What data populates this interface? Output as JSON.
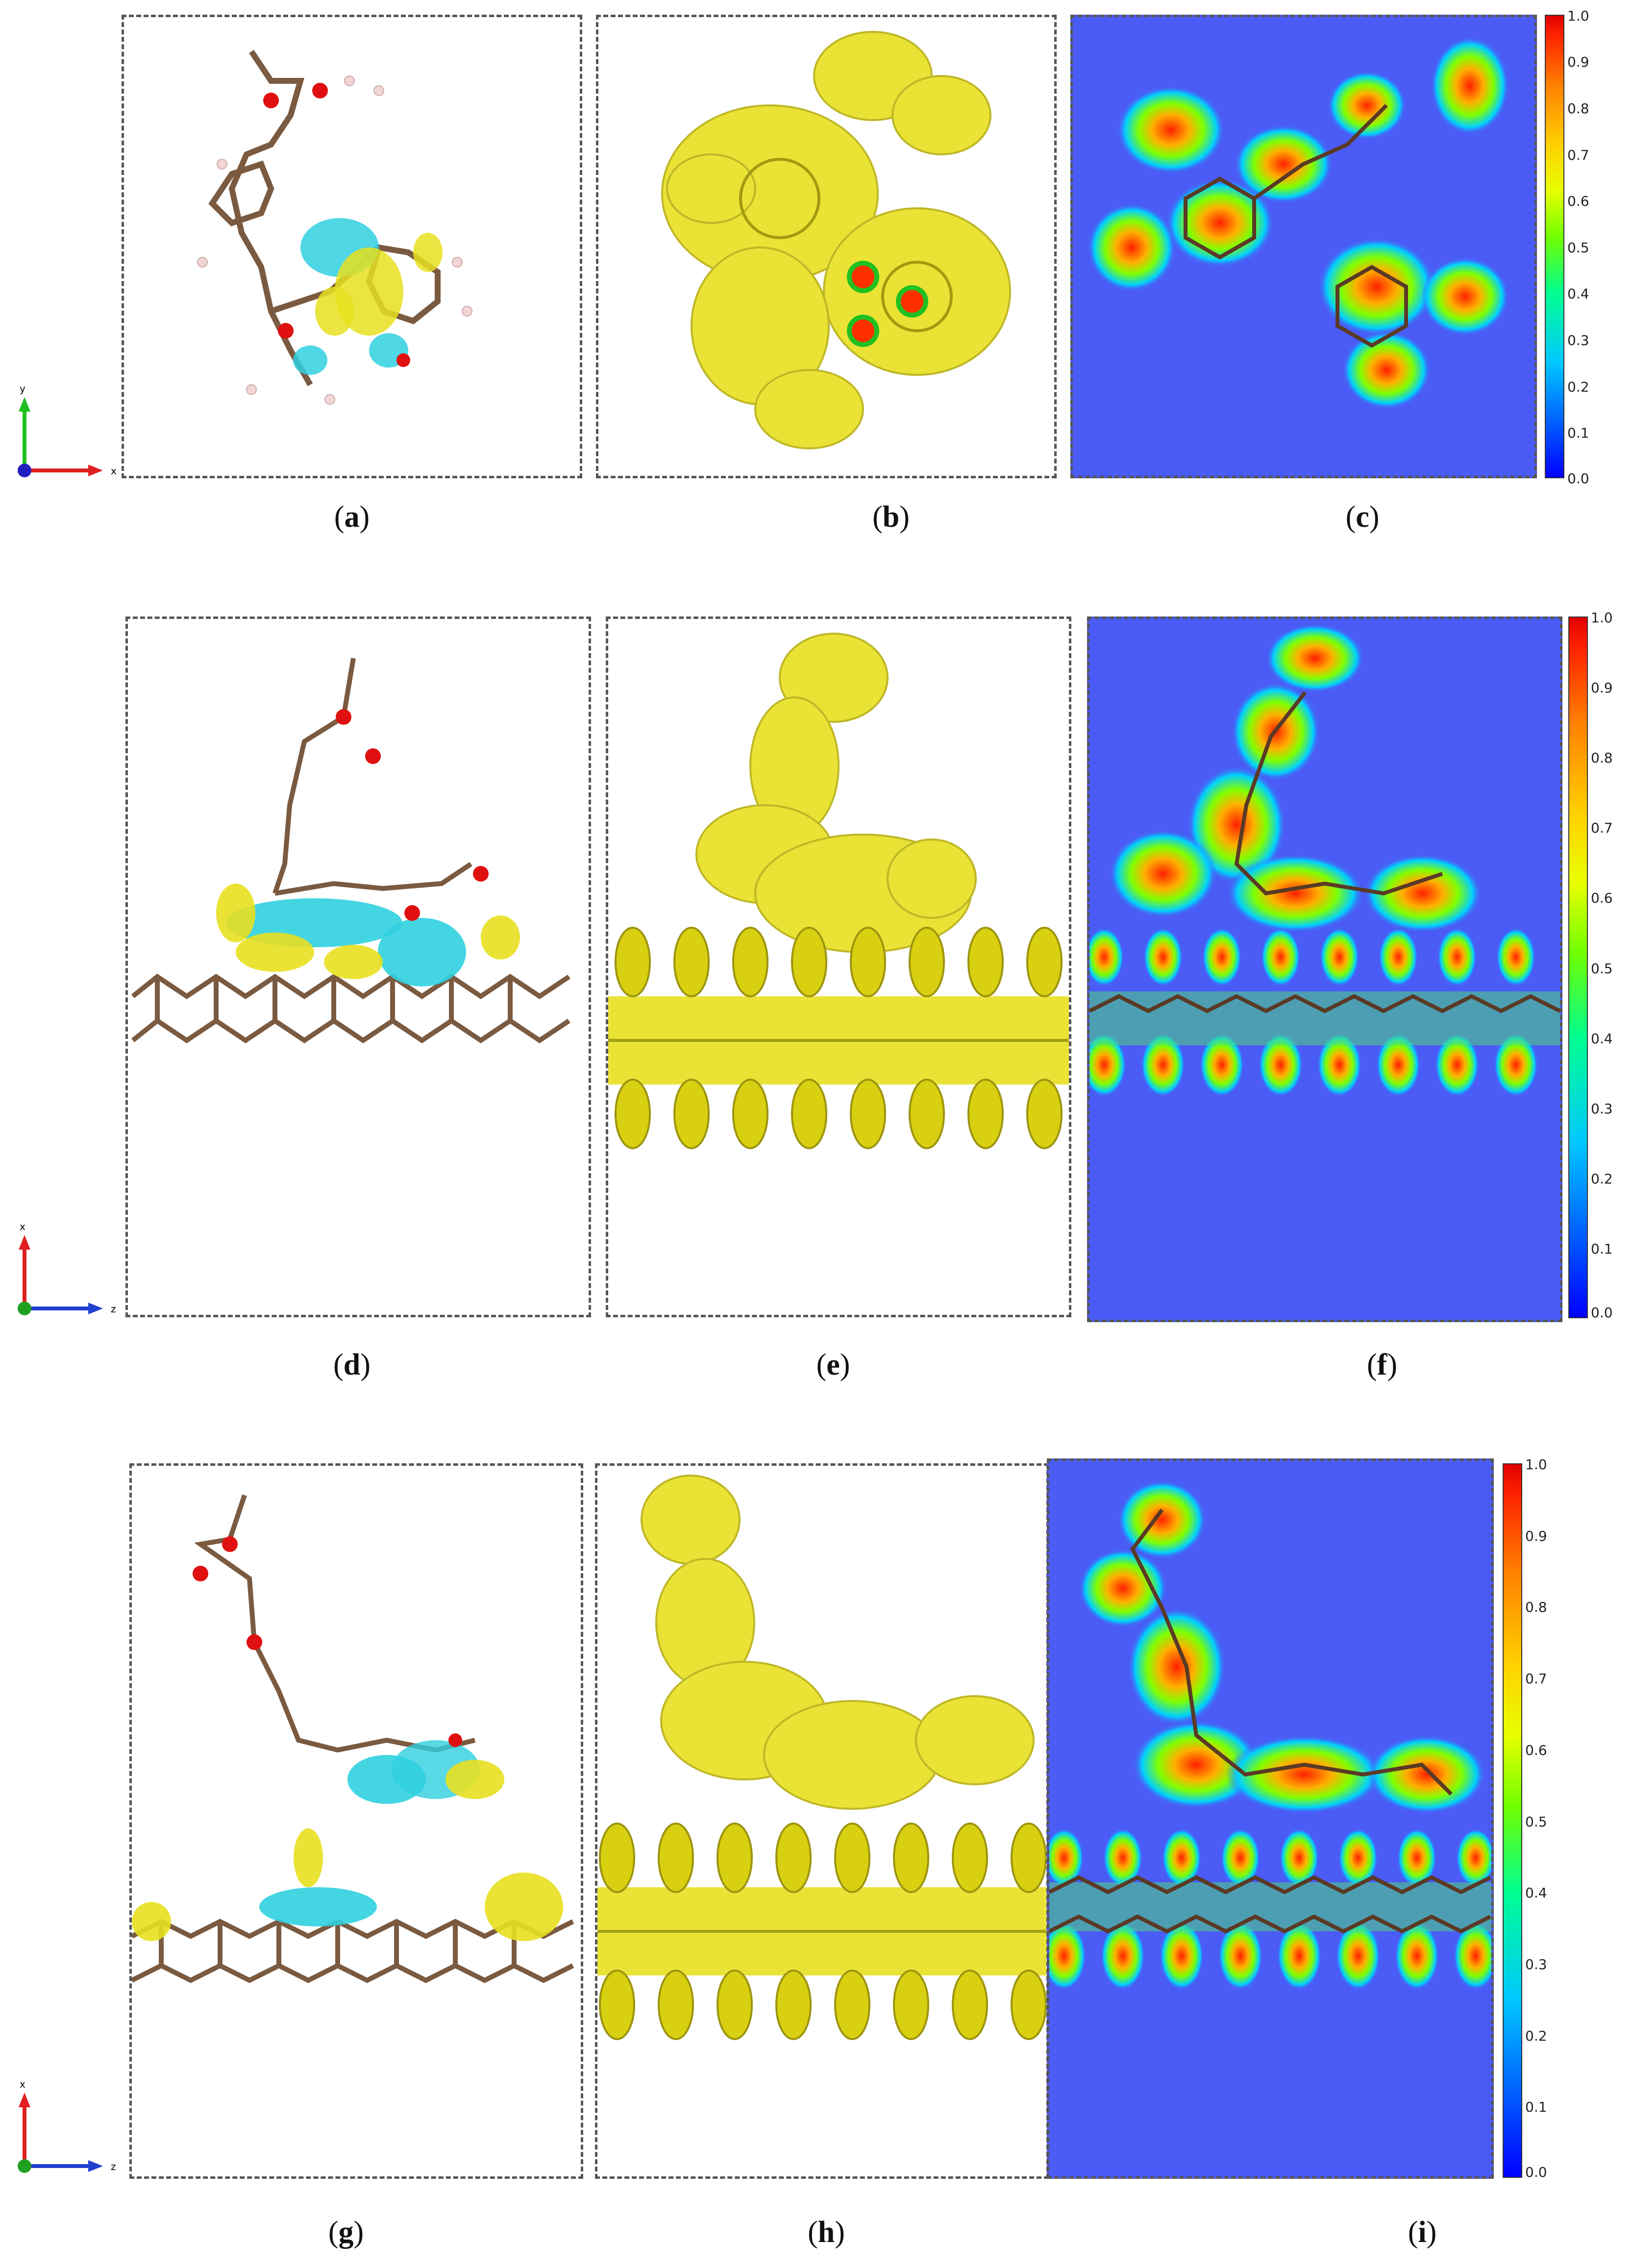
{
  "captions": {
    "a": "a",
    "b": "b",
    "c": "c",
    "d": "d",
    "e": "e",
    "f": "f",
    "g": "g",
    "h": "h",
    "i": "i"
  },
  "colorbar": {
    "ticks": [
      "1.0",
      "0.9",
      "0.8",
      "0.7",
      "0.6",
      "0.5",
      "0.4",
      "0.3",
      "0.2",
      "0.1",
      "0.0"
    ]
  },
  "axes": {
    "top": {
      "vertical": "y",
      "horizontal": "x"
    },
    "middle": {
      "vertical": "x",
      "horizontal": "z"
    },
    "bottom": {
      "vertical": "x",
      "horizontal": "z"
    }
  },
  "colors": {
    "carbon": "#7a5a40",
    "oxygen": "#e01010",
    "hydrogen": "#f2d6d6",
    "yellow_iso": "#e8e020",
    "cyan_iso": "#30d0e0",
    "elf_bg": "#4a5cf5"
  }
}
